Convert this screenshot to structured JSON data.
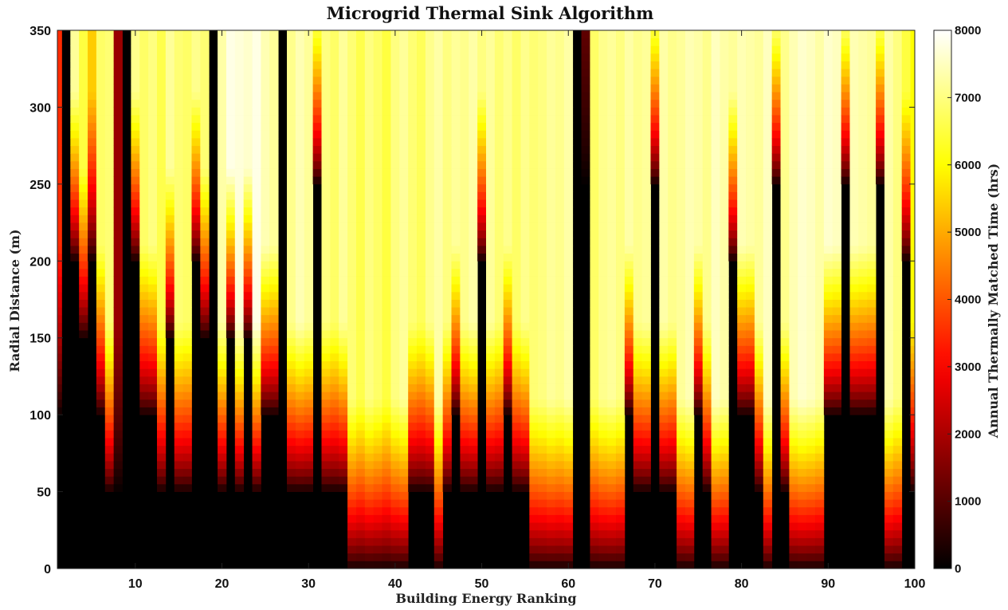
{
  "chart_data": {
    "type": "heatmap",
    "title": "Microgrid Thermal Sink Algorithm",
    "xlabel": "Building Energy Ranking",
    "ylabel": "Radial Distance (m)",
    "colorbar_label": "Annual Thermally Matched Time (hrs)",
    "colormap": "hot",
    "xlim": [
      1,
      100
    ],
    "ylim": [
      0,
      350
    ],
    "clim": [
      0,
      8000
    ],
    "x_ticks": [
      "10",
      "20",
      "30",
      "40",
      "50",
      "60",
      "70",
      "80",
      "90",
      "100"
    ],
    "y_ticks": [
      "0",
      "50",
      "100",
      "150",
      "200",
      "250",
      "300",
      "350"
    ],
    "colorbar_ticks": [
      "0",
      "1000",
      "2000",
      "3000",
      "4000",
      "5000",
      "6000",
      "7000",
      "8000"
    ],
    "x_values": [
      1,
      2,
      3,
      4,
      5,
      6,
      7,
      8,
      9,
      10,
      11,
      12,
      13,
      14,
      15,
      16,
      17,
      18,
      19,
      20,
      21,
      22,
      23,
      24,
      25,
      26,
      27,
      28,
      29,
      30,
      31,
      32,
      33,
      34,
      35,
      36,
      37,
      38,
      39,
      40,
      41,
      42,
      43,
      44,
      45,
      46,
      47,
      48,
      49,
      50,
      51,
      52,
      53,
      54,
      55,
      56,
      57,
      58,
      59,
      60,
      61,
      62,
      63,
      64,
      65,
      66,
      67,
      68,
      69,
      70,
      71,
      72,
      73,
      74,
      75,
      76,
      77,
      78,
      79,
      80,
      81,
      82,
      83,
      84,
      85,
      86,
      87,
      88,
      89,
      90,
      91,
      92,
      93,
      94,
      95,
      96,
      97,
      98,
      99,
      100
    ],
    "threshold_distance_m": [
      100,
      350,
      200,
      150,
      200,
      100,
      50,
      50,
      350,
      200,
      100,
      100,
      50,
      150,
      50,
      50,
      200,
      150,
      350,
      50,
      150,
      50,
      150,
      50,
      100,
      100,
      350,
      50,
      50,
      50,
      250,
      50,
      50,
      50,
      0,
      0,
      0,
      0,
      0,
      0,
      0,
      50,
      50,
      50,
      0,
      50,
      100,
      50,
      50,
      200,
      50,
      50,
      100,
      50,
      50,
      0,
      0,
      0,
      0,
      0,
      350,
      250,
      0,
      0,
      0,
      0,
      100,
      50,
      50,
      250,
      50,
      50,
      0,
      0,
      100,
      50,
      0,
      0,
      200,
      100,
      100,
      50,
      0,
      250,
      50,
      0,
      0,
      0,
      0,
      100,
      100,
      250,
      100,
      100,
      100,
      250,
      0,
      0,
      200,
      50
    ],
    "saturation_hours": [
      3500,
      1000,
      7200,
      6500,
      5400,
      6800,
      6900,
      1800,
      900,
      7100,
      6800,
      7000,
      6600,
      7200,
      6900,
      6800,
      7100,
      6900,
      900,
      7300,
      7800,
      7700,
      7600,
      7800,
      7400,
      7200,
      900,
      7100,
      7400,
      7200,
      6900,
      7000,
      6800,
      7200,
      6900,
      6600,
      7000,
      6800,
      6500,
      7000,
      7200,
      6900,
      6700,
      7100,
      7300,
      7000,
      7200,
      7100,
      7300,
      7000,
      7200,
      6900,
      7100,
      6800,
      7100,
      6900,
      7000,
      7200,
      7100,
      7300,
      1500,
      1200,
      6800,
      7100,
      7200,
      7000,
      7300,
      7100,
      7200,
      6900,
      7300,
      7100,
      7200,
      7400,
      7300,
      7100,
      7500,
      7300,
      7200,
      7400,
      7300,
      7200,
      7500,
      7300,
      7100,
      7400,
      7600,
      7500,
      7300,
      7600,
      7500,
      7200,
      7400,
      7300,
      7200,
      7100,
      7300,
      7000,
      6500,
      6000
    ]
  }
}
